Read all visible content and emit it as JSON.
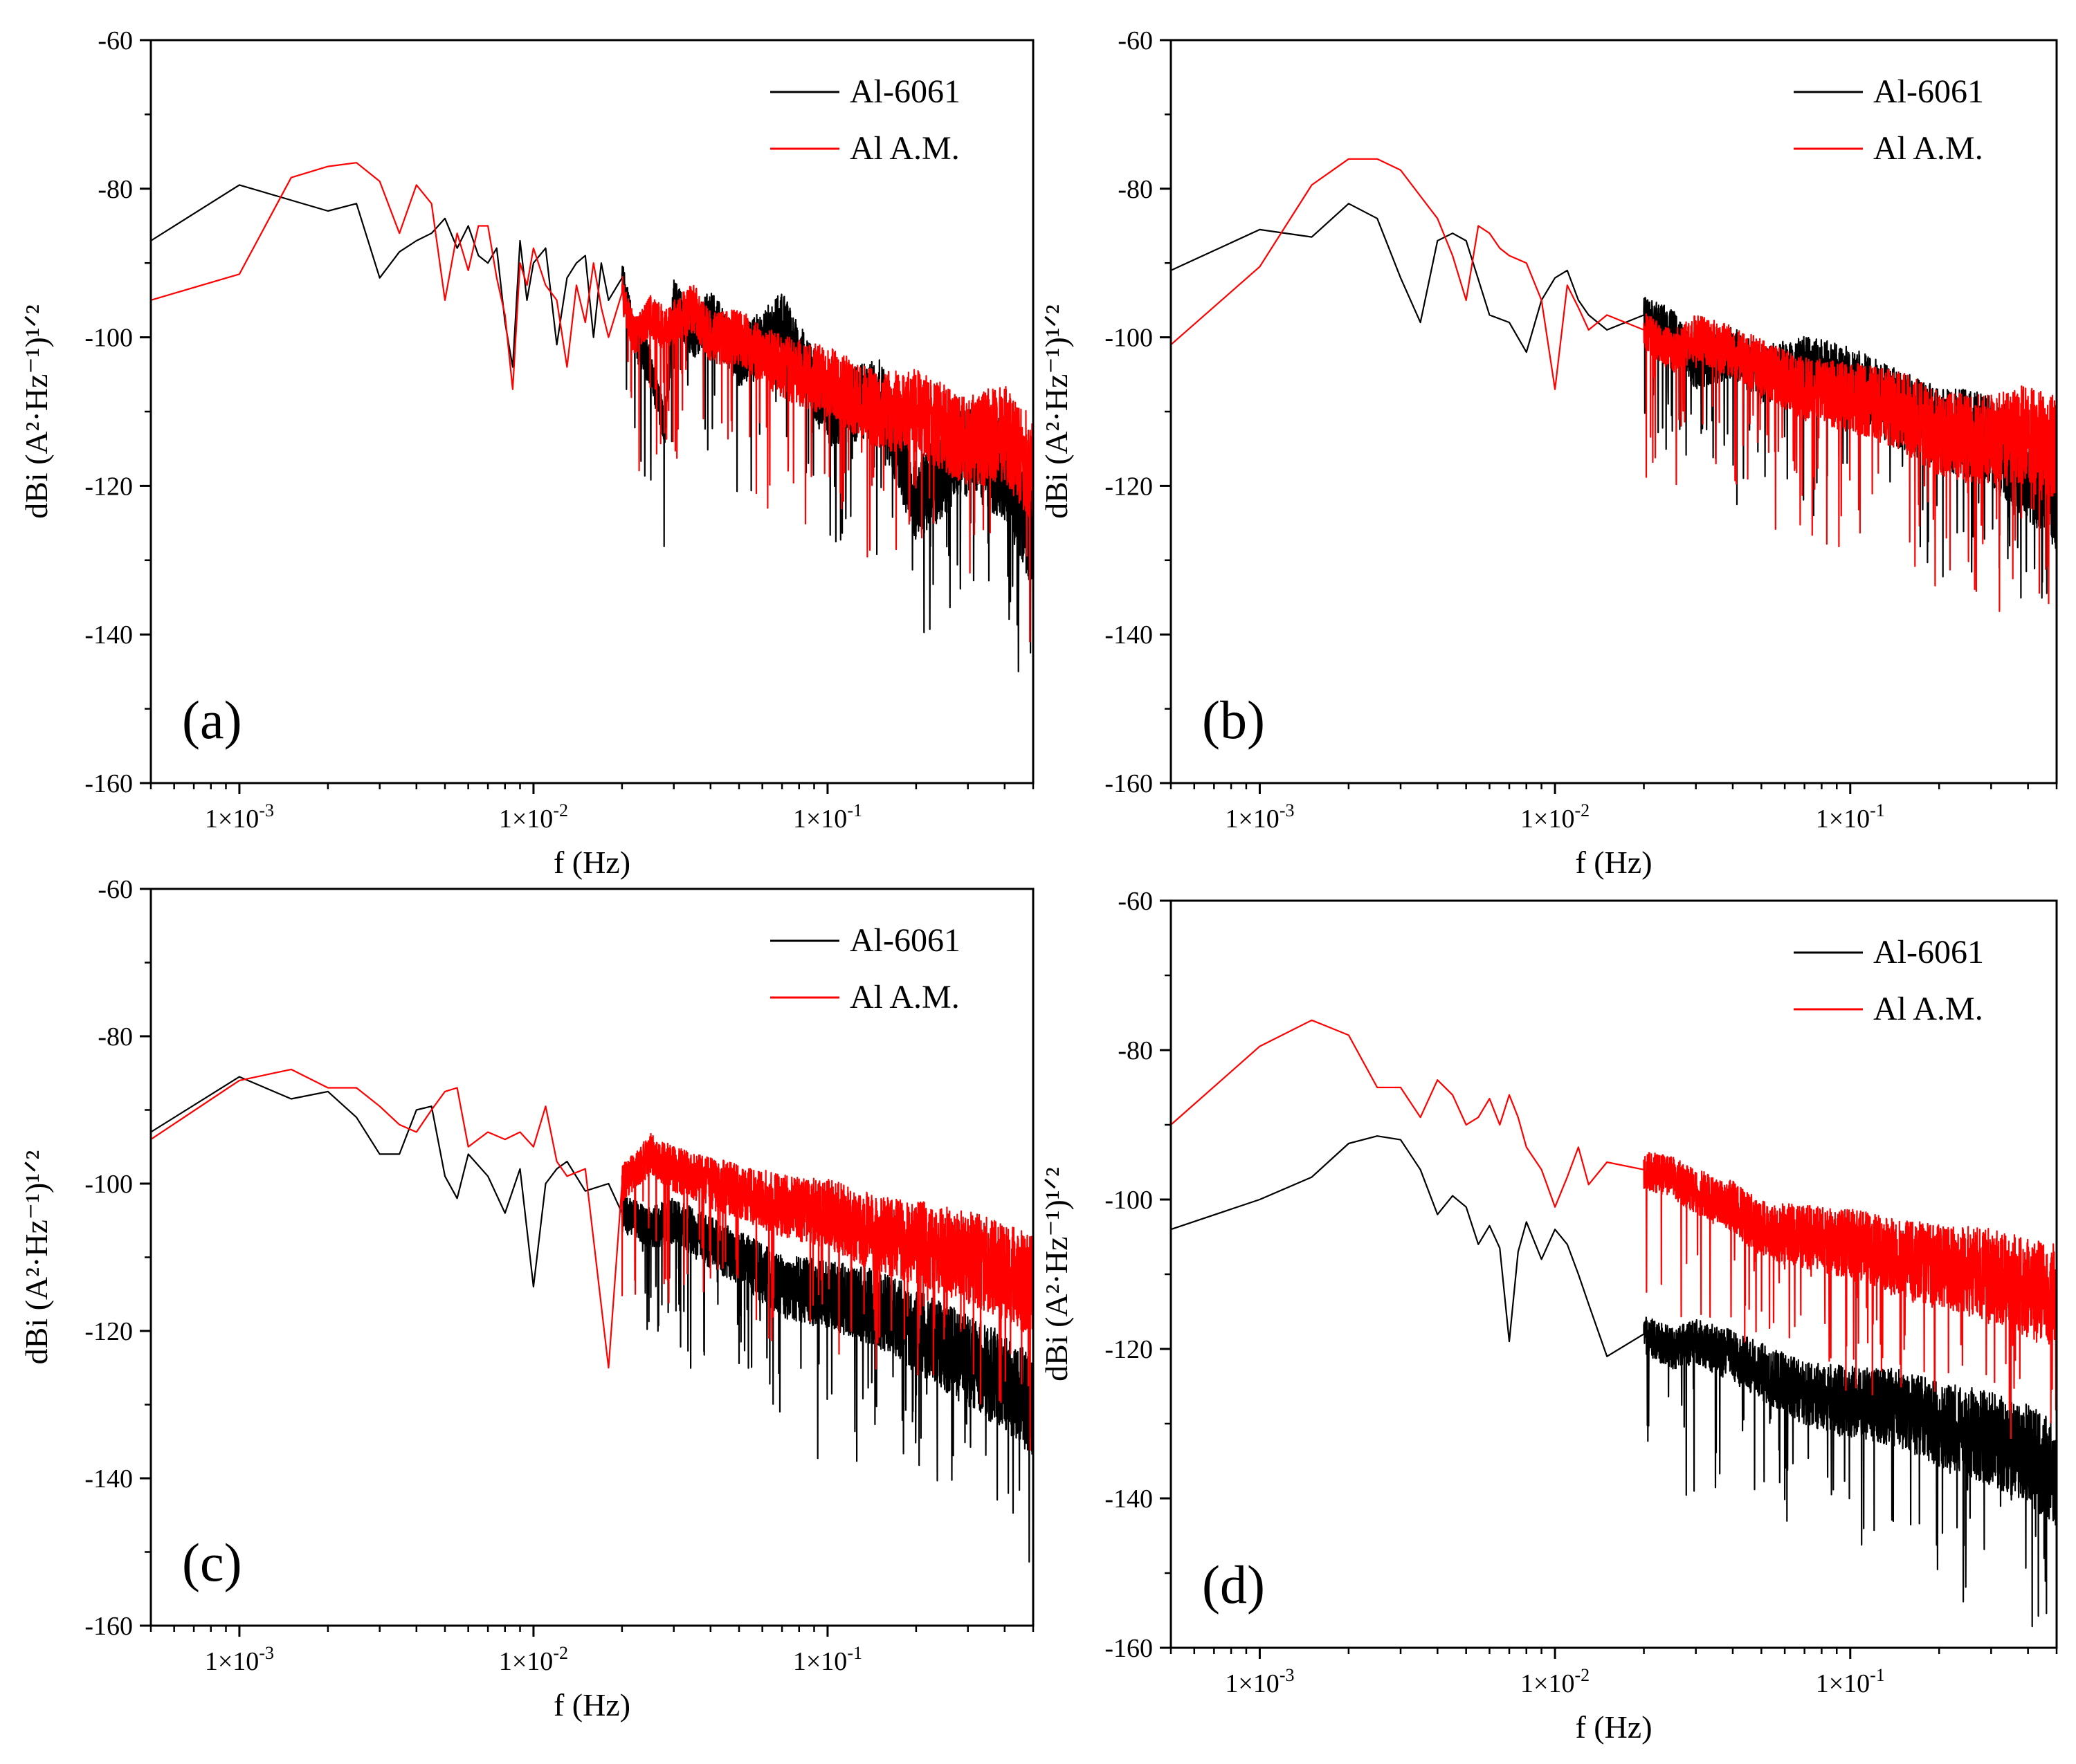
{
  "colors": {
    "al6061": "#000000",
    "alam": "#ff0000"
  },
  "panels": [
    {
      "id": "a",
      "panel_label": "(a)",
      "xlabel": "f (Hz)",
      "ylabel": "dBi (A²·Hz⁻¹)¹ᐟ²",
      "yticks": [
        "-60",
        "-80",
        "-100",
        "-120",
        "-140",
        "-160"
      ],
      "xticks": [
        {
          "m": "1×10",
          "e": "-3"
        },
        {
          "m": "1×10",
          "e": "-2"
        },
        {
          "m": "1×10",
          "e": "-1"
        }
      ],
      "legend": [
        "Al-6061",
        "Al A.M."
      ]
    },
    {
      "id": "b",
      "panel_label": "(b)",
      "xlabel": "f (Hz)",
      "ylabel": "dBi (A²·Hz⁻¹)¹ᐟ²",
      "yticks": [
        "-60",
        "-80",
        "-100",
        "-120",
        "-140",
        "-160"
      ],
      "xticks": [
        {
          "m": "1×10",
          "e": "-3"
        },
        {
          "m": "1×10",
          "e": "-2"
        },
        {
          "m": "1×10",
          "e": "-1"
        }
      ],
      "legend": [
        "Al-6061",
        "Al A.M."
      ]
    },
    {
      "id": "c",
      "panel_label": "(c)",
      "xlabel": "f (Hz)",
      "ylabel": "dBi (A²·Hz⁻¹)¹ᐟ²",
      "yticks": [
        "-60",
        "-80",
        "-100",
        "-120",
        "-140",
        "-160"
      ],
      "xticks": [
        {
          "m": "1×10",
          "e": "-3"
        },
        {
          "m": "1×10",
          "e": "-2"
        },
        {
          "m": "1×10",
          "e": "-1"
        }
      ],
      "legend": [
        "Al-6061",
        "Al A.M."
      ]
    },
    {
      "id": "d",
      "panel_label": "(d)",
      "xlabel": "f (Hz)",
      "ylabel": "dBi (A²·Hz⁻¹)¹ᐟ²",
      "yticks": [
        "-60",
        "-80",
        "-100",
        "-120",
        "-140",
        "-160"
      ],
      "xticks": [
        {
          "m": "1×10",
          "e": "-3"
        },
        {
          "m": "1×10",
          "e": "-2"
        },
        {
          "m": "1×10",
          "e": "-1"
        }
      ],
      "legend": [
        "Al-6061",
        "Al A.M."
      ]
    }
  ],
  "chart_data": [
    {
      "type": "line",
      "panel": "(a)",
      "x_scale": "log",
      "xlim": [
        0.0005,
        0.5
      ],
      "ylim": [
        -160,
        -60
      ],
      "xlabel": "f (Hz)",
      "ylabel": "dBi (A²·Hz⁻¹)¹ᐟ²",
      "legend_position": "top-right",
      "series": [
        {
          "name": "Al-6061",
          "color": "#000000",
          "x": [
            0.0005,
            0.001,
            0.002,
            0.0025,
            0.003,
            0.0035,
            0.004,
            0.0045,
            0.005,
            0.0055,
            0.006,
            0.0065,
            0.007,
            0.0075,
            0.008,
            0.0085,
            0.009,
            0.0095,
            0.01,
            0.011,
            0.012,
            0.013,
            0.014,
            0.015,
            0.016,
            0.017,
            0.018,
            0.02,
            0.022,
            0.025,
            0.028,
            0.03,
            0.035,
            0.04,
            0.05,
            0.07,
            0.1,
            0.15,
            0.2,
            0.3,
            0.4,
            0.5
          ],
          "y": [
            -87,
            -79.5,
            -83,
            -82,
            -92,
            -88.5,
            -87,
            -86,
            -84,
            -88,
            -85,
            -89,
            -90,
            -88,
            -98,
            -104,
            -87,
            -95,
            -90,
            -88,
            -101,
            -92,
            -90,
            -89,
            -100,
            -90,
            -95,
            -92,
            -100,
            -104,
            -112,
            -95,
            -100,
            -97,
            -103,
            -98,
            -110,
            -108,
            -122,
            -115,
            -118,
            -127
          ]
        },
        {
          "name": "Al A.M.",
          "color": "#ff0000",
          "x": [
            0.0005,
            0.001,
            0.0015,
            0.002,
            0.0025,
            0.003,
            0.0035,
            0.004,
            0.0045,
            0.005,
            0.0055,
            0.006,
            0.0065,
            0.007,
            0.0075,
            0.008,
            0.0085,
            0.009,
            0.0095,
            0.01,
            0.011,
            0.012,
            0.013,
            0.014,
            0.015,
            0.016,
            0.017,
            0.018,
            0.02,
            0.022,
            0.025,
            0.028,
            0.03,
            0.035,
            0.04,
            0.05,
            0.07,
            0.1,
            0.15,
            0.2,
            0.3,
            0.4,
            0.5
          ],
          "y": [
            -95,
            -91.5,
            -78.5,
            -77,
            -76.5,
            -79,
            -86,
            -79.5,
            -82,
            -95,
            -86,
            -91,
            -85,
            -85,
            -92,
            -97,
            -107,
            -90,
            -93,
            -88,
            -93,
            -95,
            -104,
            -93,
            -98,
            -90,
            -96,
            -100,
            -94,
            -100,
            -97,
            -99,
            -98,
            -96,
            -100,
            -100,
            -104,
            -106,
            -110,
            -110,
            -114,
            -113,
            -118
          ]
        }
      ]
    },
    {
      "type": "line",
      "panel": "(b)",
      "x_scale": "log",
      "xlim": [
        0.0005,
        0.5
      ],
      "ylim": [
        -160,
        -60
      ],
      "xlabel": "f (Hz)",
      "ylabel": "dBi (A²·Hz⁻¹)¹ᐟ²",
      "legend_position": "top-right",
      "series": [
        {
          "name": "Al-6061",
          "color": "#000000",
          "x": [
            0.0005,
            0.001,
            0.0015,
            0.002,
            0.0025,
            0.003,
            0.0035,
            0.004,
            0.0045,
            0.005,
            0.006,
            0.007,
            0.008,
            0.009,
            0.01,
            0.011,
            0.012,
            0.013,
            0.015,
            0.02,
            0.025,
            0.03,
            0.04,
            0.05,
            0.07,
            0.1,
            0.15,
            0.2,
            0.3,
            0.4,
            0.5
          ],
          "y": [
            -91,
            -85.5,
            -86.5,
            -82,
            -84,
            -92,
            -98,
            -87,
            -86,
            -87,
            -97,
            -98,
            -102,
            -95,
            -92,
            -91,
            -95,
            -97,
            -99,
            -97,
            -99,
            -104,
            -102,
            -105,
            -104,
            -106,
            -110,
            -112,
            -114,
            -118,
            -122
          ]
        },
        {
          "name": "Al A.M.",
          "color": "#ff0000",
          "x": [
            0.0005,
            0.001,
            0.0015,
            0.002,
            0.0025,
            0.003,
            0.0035,
            0.004,
            0.0045,
            0.005,
            0.0055,
            0.006,
            0.0065,
            0.007,
            0.008,
            0.009,
            0.01,
            0.011,
            0.012,
            0.013,
            0.015,
            0.02,
            0.025,
            0.03,
            0.04,
            0.05,
            0.07,
            0.1,
            0.15,
            0.2,
            0.3,
            0.4,
            0.5
          ],
          "y": [
            -101,
            -90.5,
            -79.5,
            -76,
            -76,
            -77.5,
            -81,
            -84,
            -89,
            -95,
            -85,
            -86,
            -88,
            -89,
            -90,
            -95,
            -107,
            -93,
            -96,
            -99,
            -97,
            -99,
            -102,
            -100,
            -102,
            -104,
            -107,
            -108,
            -110,
            -113,
            -114,
            -113,
            -115
          ]
        }
      ]
    },
    {
      "type": "line",
      "panel": "(c)",
      "x_scale": "log",
      "xlim": [
        0.0005,
        0.5
      ],
      "ylim": [
        -160,
        -60
      ],
      "xlabel": "f (Hz)",
      "ylabel": "dBi (A²·Hz⁻¹)¹ᐟ²",
      "legend_position": "top-right",
      "series": [
        {
          "name": "Al-6061",
          "color": "#000000",
          "x": [
            0.0005,
            0.001,
            0.0015,
            0.002,
            0.0025,
            0.003,
            0.0035,
            0.004,
            0.0045,
            0.005,
            0.0055,
            0.006,
            0.007,
            0.008,
            0.009,
            0.01,
            0.011,
            0.012,
            0.013,
            0.015,
            0.018,
            0.02,
            0.025,
            0.03,
            0.04,
            0.05,
            0.07,
            0.1,
            0.15,
            0.2,
            0.3,
            0.4,
            0.5
          ],
          "y": [
            -93,
            -85.5,
            -88.5,
            -87.5,
            -91,
            -96,
            -96,
            -90,
            -89.5,
            -99,
            -102,
            -96,
            -99,
            -104,
            -98,
            -114,
            -100,
            -98,
            -97,
            -101,
            -100,
            -104,
            -106,
            -105,
            -108,
            -110,
            -114,
            -115,
            -117,
            -120,
            -124,
            -127,
            -130
          ]
        },
        {
          "name": "Al A.M.",
          "color": "#ff0000",
          "x": [
            0.0005,
            0.001,
            0.0015,
            0.002,
            0.0025,
            0.003,
            0.0035,
            0.004,
            0.0045,
            0.005,
            0.0055,
            0.006,
            0.007,
            0.008,
            0.009,
            0.01,
            0.011,
            0.012,
            0.013,
            0.015,
            0.018,
            0.02,
            0.025,
            0.03,
            0.04,
            0.05,
            0.07,
            0.1,
            0.15,
            0.2,
            0.3,
            0.4,
            0.5
          ],
          "y": [
            -94,
            -86,
            -84.5,
            -87,
            -87,
            -89.5,
            -92,
            -93,
            -90,
            -87.5,
            -87,
            -95,
            -93,
            -94,
            -93,
            -95,
            -89.5,
            -97,
            -99,
            -98,
            -125,
            -100,
            -96,
            -98,
            -100,
            -101,
            -103,
            -104,
            -107,
            -108,
            -110,
            -112,
            -114
          ]
        }
      ]
    },
    {
      "type": "line",
      "panel": "(d)",
      "x_scale": "log",
      "xlim": [
        0.0005,
        0.5
      ],
      "ylim": [
        -160,
        -60
      ],
      "xlabel": "f (Hz)",
      "ylabel": "dBi (A²·Hz⁻¹)¹ᐟ²",
      "legend_position": "top-right",
      "series": [
        {
          "name": "Al-6061",
          "color": "#000000",
          "x": [
            0.0005,
            0.001,
            0.0015,
            0.002,
            0.0025,
            0.003,
            0.0035,
            0.004,
            0.0045,
            0.005,
            0.0055,
            0.006,
            0.0065,
            0.007,
            0.0075,
            0.008,
            0.009,
            0.01,
            0.011,
            0.012,
            0.013,
            0.015,
            0.02,
            0.025,
            0.03,
            0.04,
            0.05,
            0.07,
            0.1,
            0.15,
            0.2,
            0.3,
            0.4,
            0.5
          ],
          "y": [
            -104,
            -100,
            -97,
            -92.5,
            -91.5,
            -92,
            -96,
            -102,
            -99.5,
            -101,
            -106,
            -103.5,
            -106.5,
            -119,
            -107,
            -103,
            -108,
            -104,
            -106,
            -110,
            -114,
            -121,
            -118,
            -120,
            -119,
            -121,
            -123,
            -126,
            -127,
            -128,
            -130,
            -132,
            -134,
            -137
          ]
        },
        {
          "name": "Al A.M.",
          "color": "#ff0000",
          "x": [
            0.0005,
            0.001,
            0.0015,
            0.002,
            0.0025,
            0.003,
            0.0035,
            0.004,
            0.0045,
            0.005,
            0.0055,
            0.006,
            0.0065,
            0.007,
            0.0075,
            0.008,
            0.009,
            0.01,
            0.011,
            0.012,
            0.013,
            0.015,
            0.02,
            0.025,
            0.03,
            0.04,
            0.05,
            0.07,
            0.1,
            0.15,
            0.2,
            0.3,
            0.4,
            0.5
          ],
          "y": [
            -90,
            -79.5,
            -76,
            -78,
            -85,
            -85,
            -89,
            -84,
            -86,
            -90,
            -89,
            -86.5,
            -90,
            -86,
            -89,
            -93,
            -96,
            -101,
            -97,
            -93,
            -98,
            -95,
            -96,
            -97,
            -99,
            -101,
            -104,
            -105,
            -106,
            -108,
            -109,
            -110,
            -112,
            -113
          ]
        }
      ]
    }
  ]
}
